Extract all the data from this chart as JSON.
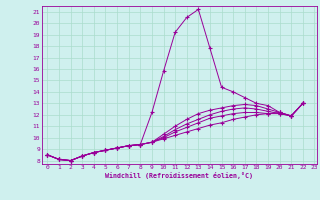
{
  "xlabel": "Windchill (Refroidissement éolien,°C)",
  "ylabel": "",
  "bg_color": "#cff0ee",
  "line_color": "#990099",
  "grid_color": "#aaddcc",
  "xmin": -0.5,
  "xmax": 23.2,
  "ymin": 7.7,
  "ymax": 21.5,
  "yticks": [
    8,
    9,
    10,
    11,
    12,
    13,
    14,
    15,
    16,
    17,
    18,
    19,
    20,
    21
  ],
  "xticks": [
    0,
    1,
    2,
    3,
    4,
    5,
    6,
    7,
    8,
    9,
    10,
    11,
    12,
    13,
    14,
    15,
    16,
    17,
    18,
    19,
    20,
    21,
    22,
    23
  ],
  "lines": [
    [
      0,
      8.5,
      1,
      8.1,
      2,
      8.0,
      3,
      8.4,
      4,
      8.7,
      5,
      8.9,
      6,
      9.1,
      7,
      9.3,
      8,
      9.4,
      9,
      12.2,
      10,
      15.8,
      11,
      19.2,
      12,
      20.5,
      13,
      21.2,
      14,
      17.8,
      15,
      14.4,
      16,
      14.0,
      17,
      13.5,
      18,
      13.0,
      19,
      12.8,
      20,
      12.2,
      21,
      11.9,
      22,
      13.0
    ],
    [
      0,
      8.5,
      1,
      8.1,
      2,
      8.0,
      3,
      8.4,
      4,
      8.7,
      5,
      8.9,
      6,
      9.1,
      7,
      9.3,
      8,
      9.4,
      9,
      9.6,
      10,
      9.9,
      11,
      10.2,
      12,
      10.5,
      13,
      10.8,
      14,
      11.1,
      15,
      11.3,
      16,
      11.6,
      17,
      11.8,
      18,
      12.0,
      19,
      12.1,
      20,
      12.2,
      21,
      11.9,
      22,
      13.0
    ],
    [
      0,
      8.5,
      1,
      8.1,
      2,
      8.0,
      3,
      8.4,
      4,
      8.7,
      5,
      8.9,
      6,
      9.1,
      7,
      9.3,
      8,
      9.4,
      9,
      9.6,
      10,
      10.0,
      11,
      10.5,
      12,
      10.9,
      13,
      11.3,
      14,
      11.7,
      15,
      11.9,
      16,
      12.1,
      17,
      12.2,
      18,
      12.2,
      19,
      12.1,
      20,
      12.1,
      21,
      11.9,
      22,
      13.0
    ],
    [
      0,
      8.5,
      1,
      8.1,
      2,
      8.0,
      3,
      8.4,
      4,
      8.7,
      5,
      8.9,
      6,
      9.1,
      7,
      9.3,
      8,
      9.4,
      9,
      9.6,
      10,
      10.1,
      11,
      10.7,
      12,
      11.2,
      13,
      11.6,
      14,
      12.0,
      15,
      12.3,
      16,
      12.5,
      17,
      12.6,
      18,
      12.5,
      19,
      12.3,
      20,
      12.1,
      21,
      11.9,
      22,
      13.0
    ],
    [
      0,
      8.5,
      1,
      8.1,
      2,
      8.0,
      3,
      8.4,
      4,
      8.7,
      5,
      8.9,
      6,
      9.1,
      7,
      9.3,
      8,
      9.4,
      9,
      9.6,
      10,
      10.3,
      11,
      11.0,
      12,
      11.6,
      13,
      12.1,
      14,
      12.4,
      15,
      12.6,
      16,
      12.8,
      17,
      12.9,
      18,
      12.8,
      19,
      12.5,
      20,
      12.2,
      21,
      11.9,
      22,
      13.0
    ]
  ]
}
